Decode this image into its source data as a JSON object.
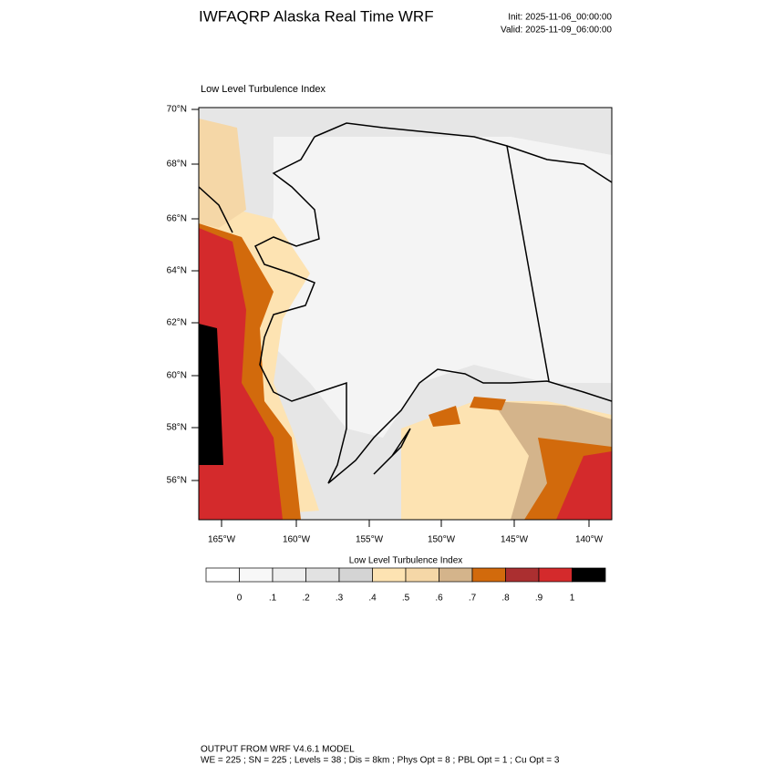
{
  "header": {
    "title": "IWFAQRP Alaska Real Time WRF",
    "init": "Init: 2025-11-06_00:00:00",
    "valid": "Valid: 2025-11-09_06:00:00"
  },
  "map": {
    "title": "Low Level Turbulence Index",
    "lat_labels": [
      "70°N",
      "68°N",
      "66°N",
      "64°N",
      "62°N",
      "60°N",
      "58°N",
      "56°N"
    ],
    "lon_labels": [
      "165°W",
      "160°W",
      "155°W",
      "150°W",
      "145°W",
      "140°W"
    ]
  },
  "colorbar": {
    "title": "Low Level Turbulence Index",
    "colors": [
      "#ffffff",
      "#f8f8f8",
      "#efefef",
      "#e2e2e2",
      "#d4d4d4",
      "#fde3b2",
      "#f5d7a7",
      "#d4b48b",
      "#d26a0c",
      "#ab2f30",
      "#d42a2c",
      "#000000"
    ],
    "labels": [
      "0",
      ".1",
      ".2",
      ".3",
      ".4",
      ".5",
      ".6",
      ".7",
      ".8",
      ".9",
      "1"
    ]
  },
  "footer": {
    "line1": "OUTPUT FROM WRF V4.6.1 MODEL",
    "line2": "WE = 225 ; SN = 225 ; Levels = 38 ; Dis = 8km ; Phys Opt = 8 ; PBL Opt = 1 ; Cu Opt = 3"
  }
}
